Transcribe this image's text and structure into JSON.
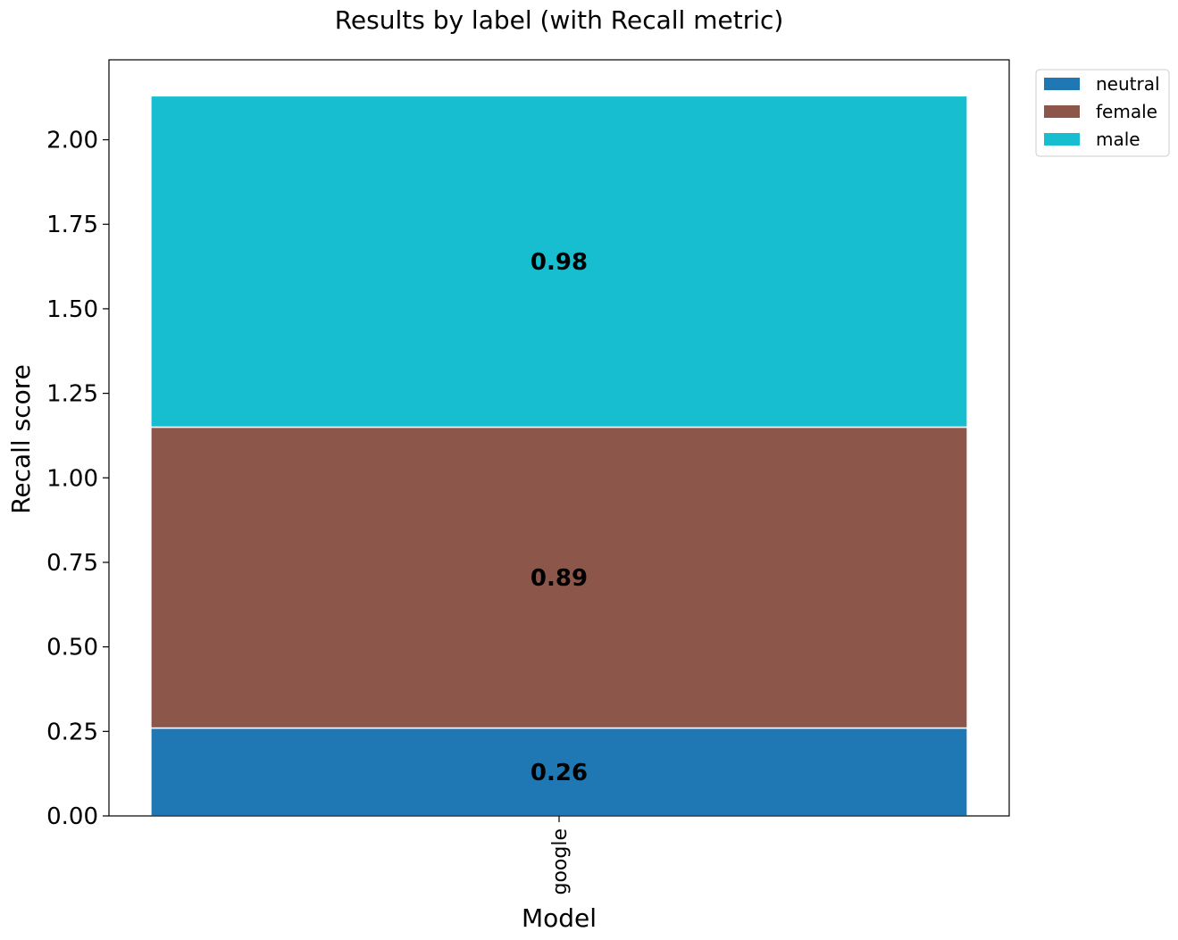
{
  "chart_data": {
    "type": "bar",
    "stacked": true,
    "title": "Results by label (with Recall metric)",
    "xlabel": "Model",
    "ylabel": "Recall score",
    "categories": [
      "google"
    ],
    "series": [
      {
        "name": "neutral",
        "values": [
          0.26
        ],
        "color": "#1f77b4"
      },
      {
        "name": "female",
        "values": [
          0.89
        ],
        "color": "#8c564b"
      },
      {
        "name": "male",
        "values": [
          0.98
        ],
        "color": "#17becf"
      }
    ],
    "data_labels": [
      "0.26",
      "0.89",
      "0.98"
    ],
    "ylim": [
      0,
      2.2365
    ],
    "yticks": [
      "0.00",
      "0.25",
      "0.50",
      "0.75",
      "1.00",
      "1.25",
      "1.50",
      "1.75",
      "2.00"
    ],
    "grid": false,
    "legend_position": "outside-top-right"
  }
}
